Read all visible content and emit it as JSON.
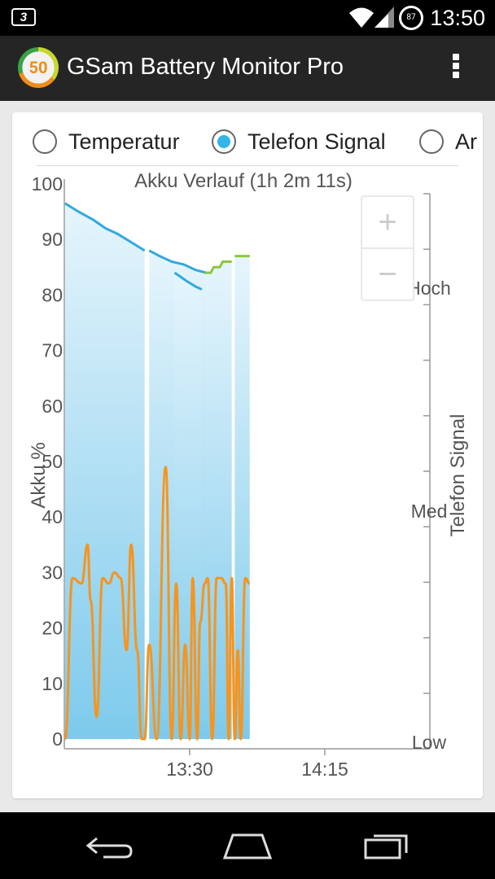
{
  "status_bar": {
    "carrier_icon": "3-icon",
    "battery_level": "87",
    "time": "13:50"
  },
  "action_bar": {
    "logo_text": "50",
    "title": "GSam Battery Monitor Pro",
    "menu_icon": "overflow-menu-icon"
  },
  "radio_options": [
    {
      "label": "Temperatur",
      "selected": false
    },
    {
      "label": "Telefon Signal",
      "selected": true
    },
    {
      "label": "Ar",
      "selected": false
    }
  ],
  "zoom": {
    "in_label": "+",
    "out_label": "−"
  },
  "chart_data": {
    "type": "line",
    "title": "Akku Verlauf (1h 2m 11s)",
    "ylabel": "Akku %",
    "y2label": "Telefon Signal",
    "ylim": [
      0,
      100
    ],
    "y_ticks": [
      "0",
      "10",
      "20",
      "30",
      "40",
      "50",
      "60",
      "70",
      "80",
      "90",
      "100"
    ],
    "y2_ticks": [
      "Low",
      "Med",
      "Hoch"
    ],
    "x_ticks": [
      "13:30",
      "14:15"
    ],
    "x_tick_minutes": [
      0,
      45
    ],
    "x_range_minutes": [
      -41.5,
      79
    ],
    "series": [
      {
        "color": "#33a9dc",
        "segments": [
          {
            "x": [
              -41.5,
              -37,
              -32,
              -28,
              -24,
              -21,
              -18,
              -15
            ],
            "y": [
              96.5,
              95,
              93.5,
              92,
              91,
              90,
              89,
              88
            ]
          },
          {
            "x": [
              -13.5,
              -10,
              -6,
              -2,
              2,
              5.5
            ],
            "y": [
              88,
              87,
              86,
              85.5,
              84.5,
              84
            ]
          },
          {
            "x": [
              -5,
              -1,
              2,
              4
            ],
            "y": [
              84,
              82.5,
              81.5,
              81
            ]
          }
        ]
      },
      {
        "color": "#8cc63f",
        "segments": [
          {
            "x": [
              5,
              7,
              8,
              10,
              11,
              13,
              14
            ],
            "y": [
              84,
              84,
              85,
              85,
              86,
              86,
              86
            ]
          },
          {
            "x": [
              15,
              20
            ],
            "y": [
              87,
              87
            ]
          }
        ]
      },
      {
        "color": "#f7941d",
        "values_fraction": true,
        "x": [
          -41.5,
          -39,
          -36,
          -34,
          -33,
          -31,
          -29,
          -27,
          -25,
          -23,
          -21,
          -19.5,
          -17.5,
          -16,
          -15,
          -13.5,
          -11,
          -8,
          -6,
          -4.5,
          -3,
          -1.5,
          0,
          1,
          2.5,
          3.5,
          5,
          6,
          7.5,
          9,
          10.5,
          12,
          13,
          14,
          15,
          16,
          17,
          18.5,
          20
        ],
        "y": [
          0,
          0.29,
          0.28,
          0.35,
          0.25,
          0.04,
          0.29,
          0.28,
          0.3,
          0.29,
          0.16,
          0.35,
          0.16,
          0.0,
          0.0,
          0.17,
          0.0,
          0.49,
          0.0,
          0.28,
          0.0,
          0.17,
          0.0,
          0.29,
          0.0,
          0.21,
          0.28,
          0.29,
          0.0,
          0.29,
          0.29,
          0.28,
          0.0,
          0.29,
          0.0,
          0.16,
          0.0,
          0.29,
          0.28
        ]
      }
    ],
    "fill_color": "#8fd3f0"
  }
}
